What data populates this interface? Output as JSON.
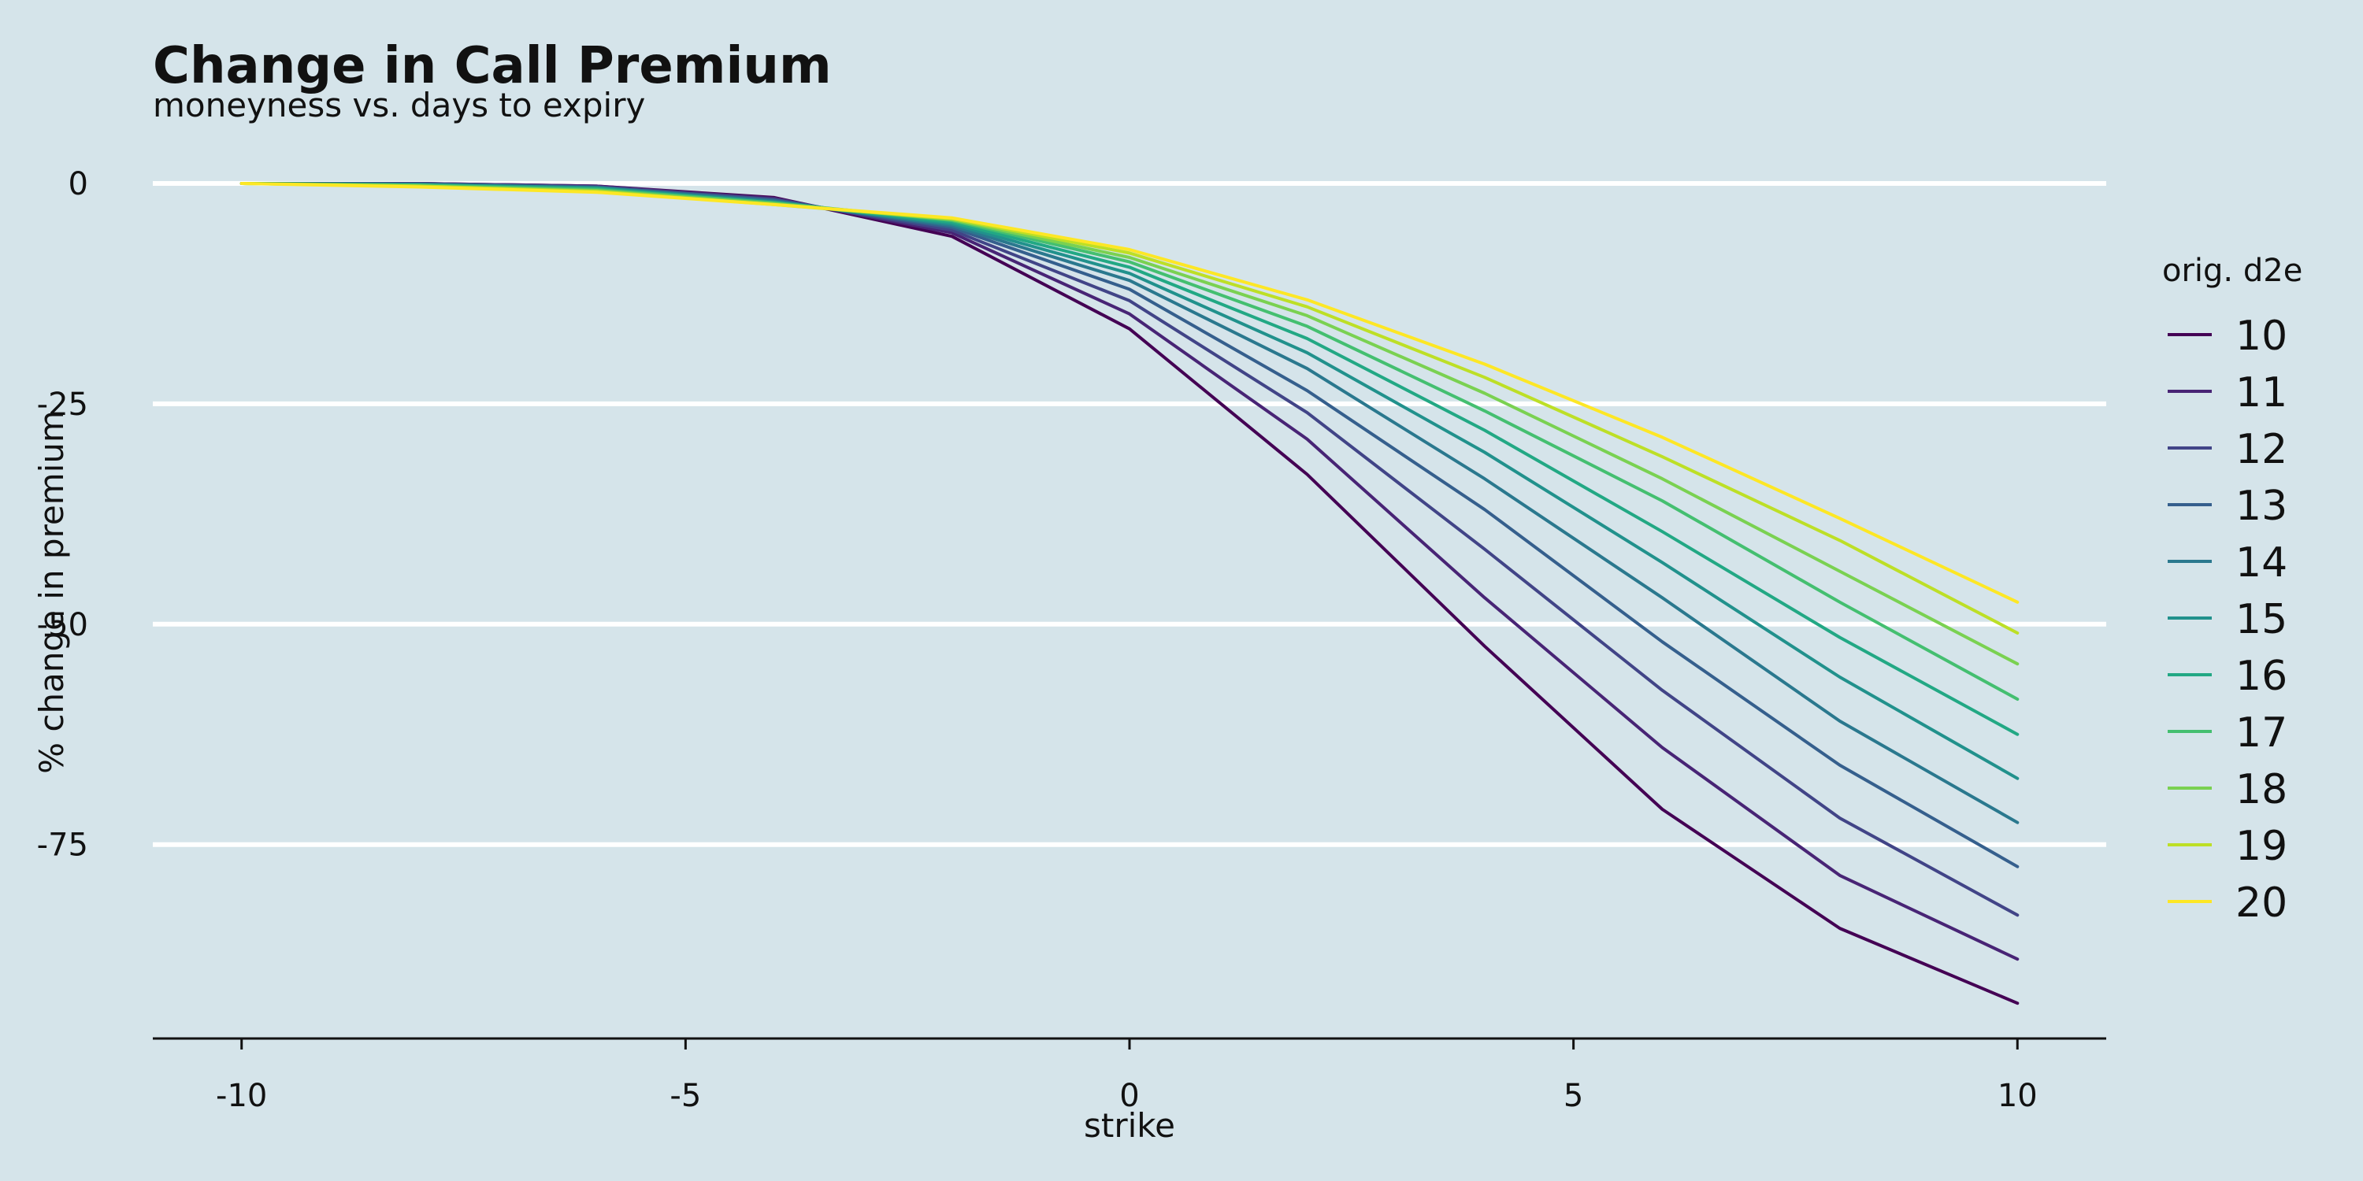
{
  "chart_data": {
    "type": "line",
    "title": "Change in Call Premium",
    "subtitle": "moneyness vs. days to expiry",
    "xlabel": "strike",
    "ylabel": "% change in premium",
    "xlim": [
      -11,
      11
    ],
    "ylim": [
      -97,
      0
    ],
    "x_ticks": [
      -10,
      -5,
      0,
      5,
      10
    ],
    "y_ticks": [
      0,
      -25,
      -50,
      -75
    ],
    "x_tick_labels": [
      "-10",
      "-5",
      "0",
      "5",
      "10"
    ],
    "y_tick_labels": [
      "0",
      "-25",
      "-50",
      "-75"
    ],
    "grid": "horizontal",
    "legend_title": "orig. d2e",
    "legend_position": "right",
    "x": [
      -10,
      -8,
      -6,
      -4,
      -2,
      0,
      2,
      4,
      6,
      8,
      10
    ],
    "series": [
      {
        "name": "10",
        "color": "#440154",
        "values": [
          0,
          0,
          -0.3,
          -1.6,
          -6.0,
          -16.5,
          -33.0,
          -52.5,
          -71.0,
          -84.5,
          -93.0
        ]
      },
      {
        "name": "11",
        "color": "#482475",
        "values": [
          0,
          0,
          -0.3,
          -1.7,
          -5.6,
          -14.8,
          -29.0,
          -47.0,
          -64.0,
          -78.5,
          -88.0
        ]
      },
      {
        "name": "12",
        "color": "#414487",
        "values": [
          0,
          0,
          -0.4,
          -1.8,
          -5.3,
          -13.3,
          -26.0,
          -41.5,
          -57.5,
          -72.0,
          -83.0
        ]
      },
      {
        "name": "13",
        "color": "#355f8d",
        "values": [
          0,
          -0.1,
          -0.4,
          -1.9,
          -5.0,
          -12.0,
          -23.5,
          -37.0,
          -52.0,
          -66.0,
          -77.5
        ]
      },
      {
        "name": "14",
        "color": "#2a788e",
        "values": [
          0,
          -0.1,
          -0.5,
          -2.0,
          -4.8,
          -11.0,
          -21.0,
          -33.5,
          -47.0,
          -61.0,
          -72.5
        ]
      },
      {
        "name": "15",
        "color": "#21918c",
        "values": [
          0,
          -0.1,
          -0.5,
          -2.1,
          -4.6,
          -10.2,
          -19.2,
          -30.5,
          -43.0,
          -56.0,
          -67.5
        ]
      },
      {
        "name": "16",
        "color": "#22a884",
        "values": [
          0,
          -0.2,
          -0.6,
          -2.2,
          -4.4,
          -9.5,
          -17.6,
          -28.0,
          -39.5,
          -51.5,
          -62.5
        ]
      },
      {
        "name": "17",
        "color": "#44bf70",
        "values": [
          0,
          -0.2,
          -0.7,
          -2.2,
          -4.2,
          -8.9,
          -16.2,
          -25.8,
          -36.0,
          -47.5,
          -58.5
        ]
      },
      {
        "name": "18",
        "color": "#7ad151",
        "values": [
          0,
          -0.3,
          -0.8,
          -2.3,
          -4.1,
          -8.4,
          -15.0,
          -23.8,
          -33.5,
          -44.0,
          -54.5
        ]
      },
      {
        "name": "19",
        "color": "#bddf26",
        "values": [
          0,
          -0.3,
          -0.9,
          -2.4,
          -4.0,
          -7.9,
          -14.0,
          -22.0,
          -31.0,
          -40.5,
          -51.0
        ]
      },
      {
        "name": "20",
        "color": "#fde725",
        "values": [
          0,
          -0.4,
          -1.0,
          -2.4,
          -3.9,
          -7.5,
          -13.2,
          -20.5,
          -28.8,
          -38.0,
          -47.5
        ]
      }
    ]
  }
}
